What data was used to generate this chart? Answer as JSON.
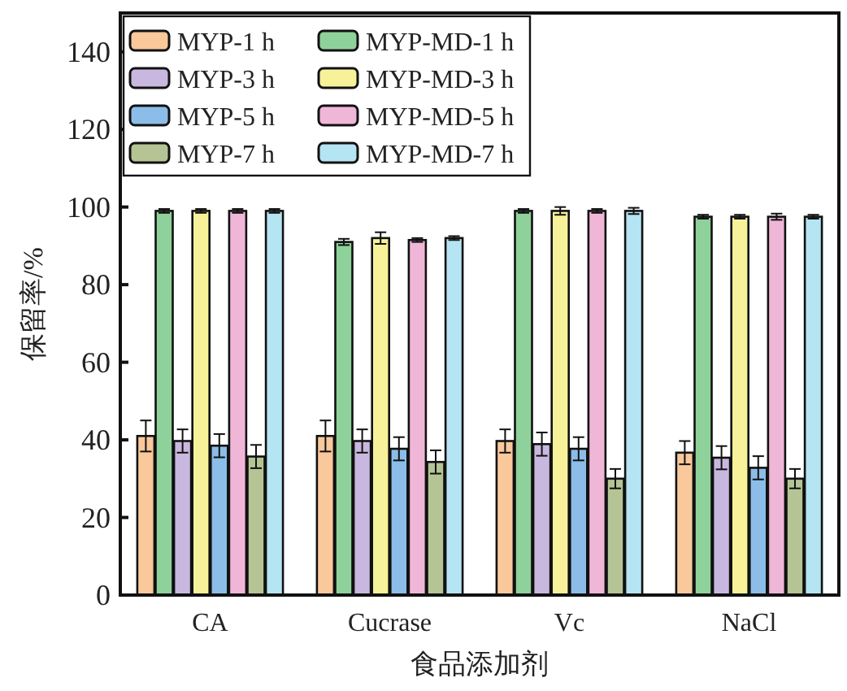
{
  "chart_data": {
    "type": "bar",
    "xlabel": "食品添加剂",
    "ylabel": "保留率/%",
    "categories": [
      "CA",
      "Cucrase",
      "Vc",
      "NaCl"
    ],
    "ylim": [
      0,
      150
    ],
    "yticks": [
      0,
      20,
      40,
      60,
      80,
      100,
      120,
      140
    ],
    "grid": false,
    "legend": "top left",
    "series": [
      {
        "name": "MYP-1 h",
        "color": "#f9c89b",
        "values": [
          41,
          41,
          39.7,
          36.7
        ],
        "errors": [
          4,
          4,
          3,
          3
        ]
      },
      {
        "name": "MYP-MD-1 h",
        "color": "#8fd19a",
        "values": [
          99,
          91,
          99,
          97.5
        ],
        "errors": [
          0.5,
          0.8,
          0.5,
          0.5
        ]
      },
      {
        "name": "MYP-3 h",
        "color": "#c8b8df",
        "values": [
          39.7,
          39.7,
          38.9,
          35.4
        ],
        "errors": [
          3,
          3,
          3,
          3
        ]
      },
      {
        "name": "MYP-MD-3 h",
        "color": "#f7f29a",
        "values": [
          99,
          92,
          99,
          97.5
        ],
        "errors": [
          0.5,
          1.5,
          1,
          0.5
        ]
      },
      {
        "name": "MYP-5 h",
        "color": "#8cbde8",
        "values": [
          38.5,
          37.7,
          37.7,
          32.8
        ],
        "errors": [
          3,
          3,
          3,
          3
        ]
      },
      {
        "name": "MYP-MD-5 h",
        "color": "#f0b6d8",
        "values": [
          99,
          91.5,
          99,
          97.5
        ],
        "errors": [
          0.5,
          0.5,
          0.5,
          0.8
        ]
      },
      {
        "name": "MYP-7 h",
        "color": "#b5c494",
        "values": [
          35.7,
          34.3,
          30,
          30
        ],
        "errors": [
          3,
          3,
          2.5,
          2.5
        ]
      },
      {
        "name": "MYP-MD-7 h",
        "color": "#b5e4f2",
        "values": [
          99,
          92,
          99,
          97.5
        ],
        "errors": [
          0.5,
          0.5,
          0.8,
          0.5
        ]
      }
    ]
  }
}
